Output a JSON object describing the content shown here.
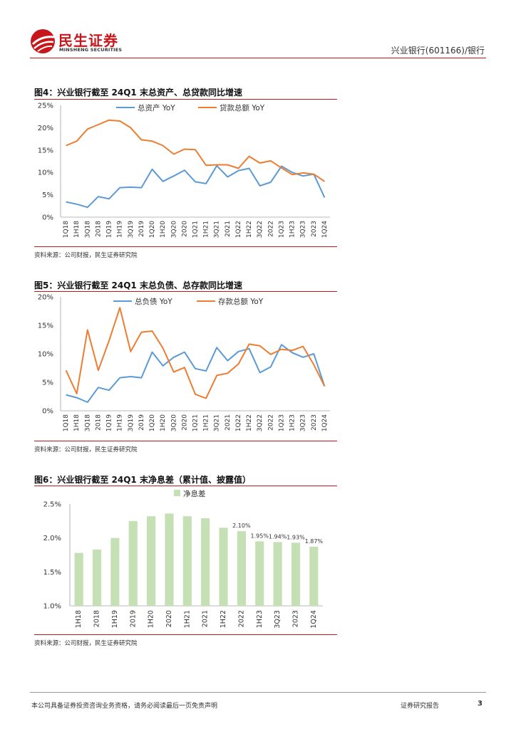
{
  "header": {
    "logo_cn": "民生证券",
    "logo_en": "MINSHENG SECURITIES",
    "doc_ref": "兴业银行(601166)/银行",
    "accent": "#c8161d"
  },
  "figures": [
    {
      "title": "图4：兴业银行截至 24Q1 末总资产、总贷款同比增速",
      "source": "资料来源：公司财报，民生证券研究院"
    },
    {
      "title": "图5：兴业银行截至 24Q1 末总负债、总存款同比增速",
      "source": "资料来源：公司财报，民生证券研究院"
    },
    {
      "title": "图6：兴业银行截至 24Q1 末净息差（累计值、披露值）",
      "source": "资料来源：公司财报，民生证券研究院"
    }
  ],
  "chart_data": [
    {
      "type": "line",
      "title": "图4：兴业银行截至 24Q1 末总资产、总贷款同比增速",
      "categories": [
        "1Q18",
        "1H18",
        "3Q18",
        "2018",
        "1Q19",
        "1H19",
        "3Q19",
        "2019",
        "1Q20",
        "1H20",
        "3Q20",
        "2020",
        "1Q21",
        "1H21",
        "3Q21",
        "2021",
        "1Q22",
        "1H22",
        "3Q22",
        "2022",
        "1Q23",
        "1H23",
        "3Q23",
        "2023",
        "1Q24"
      ],
      "series": [
        {
          "name": "总资产 YoY",
          "color": "#5b9bd5",
          "values": [
            3.4,
            2.9,
            2.2,
            4.6,
            4.1,
            6.6,
            6.7,
            6.6,
            10.7,
            8.0,
            9.2,
            10.5,
            7.9,
            7.5,
            11.5,
            9.0,
            10.4,
            10.9,
            7.0,
            7.8,
            11.4,
            10.0,
            9.2,
            9.6,
            4.4
          ]
        },
        {
          "name": "贷款总额 YoY",
          "color": "#ed7d31",
          "values": [
            16.0,
            17.0,
            19.7,
            20.7,
            21.7,
            21.5,
            20.0,
            17.3,
            17.0,
            16.0,
            14.1,
            15.2,
            15.1,
            11.6,
            11.7,
            11.7,
            10.9,
            13.6,
            12.1,
            12.6,
            11.0,
            9.5,
            9.9,
            9.6,
            8.0
          ]
        }
      ],
      "yticks": [
        "0%",
        "5%",
        "10%",
        "15%",
        "20%",
        "25%"
      ],
      "ylim": [
        0,
        25
      ]
    },
    {
      "type": "line",
      "title": "图5：兴业银行截至 24Q1 末总负债、总存款同比增速",
      "categories": [
        "1Q18",
        "1H18",
        "3Q18",
        "2018",
        "1Q19",
        "1H19",
        "3Q19",
        "2019",
        "1Q20",
        "1H20",
        "3Q20",
        "2020",
        "1Q21",
        "1H21",
        "3Q21",
        "2021",
        "1Q22",
        "1H22",
        "3Q22",
        "2022",
        "1Q23",
        "1H23",
        "3Q23",
        "2023",
        "1Q24"
      ],
      "series": [
        {
          "name": "总负债 YoY",
          "color": "#5b9bd5",
          "values": [
            2.8,
            2.3,
            1.5,
            4.1,
            3.6,
            5.8,
            6.0,
            5.8,
            10.3,
            7.9,
            9.4,
            10.3,
            7.4,
            7.0,
            11.1,
            8.8,
            10.4,
            10.9,
            6.7,
            7.7,
            11.6,
            10.2,
            9.4,
            10.0,
            4.3
          ]
        },
        {
          "name": "存款总额 YoY",
          "color": "#ed7d31",
          "values": [
            7.1,
            3.0,
            14.2,
            7.1,
            12.3,
            18.1,
            10.4,
            13.8,
            14.0,
            11.0,
            6.8,
            7.6,
            2.9,
            2.2,
            6.2,
            6.6,
            8.2,
            11.7,
            11.4,
            9.9,
            10.8,
            10.6,
            11.3,
            8.1,
            4.3
          ]
        }
      ],
      "yticks": [
        "0%",
        "5%",
        "10%",
        "15%",
        "20%"
      ],
      "ylim": [
        0,
        20
      ]
    },
    {
      "type": "bar",
      "title": "图6：兴业银行截至 24Q1 末净息差（累计值、披露值）",
      "categories": [
        "1H18",
        "2018",
        "1H19",
        "2019",
        "1H20",
        "2020",
        "1H21",
        "2021",
        "1H22",
        "2022",
        "1H23",
        "3Q23",
        "2023",
        "1Q24"
      ],
      "series": [
        {
          "name": "净息差",
          "color": "#c5e0b4",
          "values": [
            1.78,
            1.83,
            2.0,
            2.25,
            2.32,
            2.36,
            2.32,
            2.29,
            2.15,
            2.1,
            1.95,
            1.94,
            1.93,
            1.87
          ],
          "labels": [
            "",
            "",
            "",
            "",
            "",
            "",
            "",
            "",
            "",
            "2.10%",
            "1.95%",
            "1.94%",
            "1.93%",
            "1.87%"
          ]
        }
      ],
      "yticks": [
        "1.0%",
        "1.5%",
        "2.0%",
        "2.5%"
      ],
      "ylim": [
        1.0,
        2.5
      ]
    }
  ],
  "footer": {
    "disclaimer": "本公司具备证券投资咨询业务资格，请务必阅读最后一页免责声明",
    "report_type": "证券研究报告",
    "page_number": "3"
  }
}
